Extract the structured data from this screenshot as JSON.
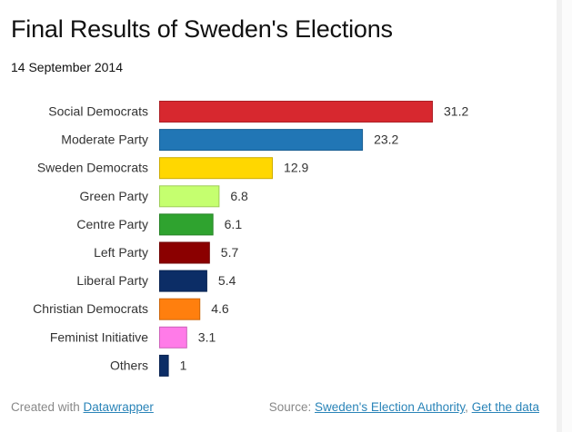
{
  "header": {
    "title": "Final Results of Sweden's Elections",
    "subtitle": "14 September 2014"
  },
  "footer": {
    "created_prefix": "Created with ",
    "created_link": "Datawrapper",
    "source_prefix": "Source: ",
    "source_link": "Sweden's Election Authority",
    "separator": ", ",
    "data_link": "Get the data"
  },
  "chart_data": {
    "type": "bar",
    "orientation": "horizontal",
    "title": "Final Results of Sweden's Elections",
    "subtitle": "14 September 2014",
    "xlabel": "",
    "ylabel": "",
    "categories": [
      "Social Democrats",
      "Moderate Party",
      "Sweden Democrats",
      "Green Party",
      "Centre Party",
      "Left Party",
      "Liberal Party",
      "Christian Democrats",
      "Feminist Initiative",
      "Others"
    ],
    "values": [
      31.2,
      23.2,
      12.9,
      6.8,
      6.1,
      5.7,
      5.4,
      4.6,
      3.1,
      1
    ],
    "value_labels": [
      "31.2",
      "23.2",
      "12.9",
      "6.8",
      "6.1",
      "5.7",
      "5.4",
      "4.6",
      "3.1",
      "1"
    ],
    "colors": [
      "#d7282f",
      "#2176b5",
      "#ffd700",
      "#c5ff6f",
      "#2fa32f",
      "#8b0000",
      "#0c2d66",
      "#ff7f0e",
      "#ff7be8",
      "#0c2d66"
    ],
    "xlim": [
      0,
      31.2
    ],
    "grid": false,
    "legend": "none"
  }
}
